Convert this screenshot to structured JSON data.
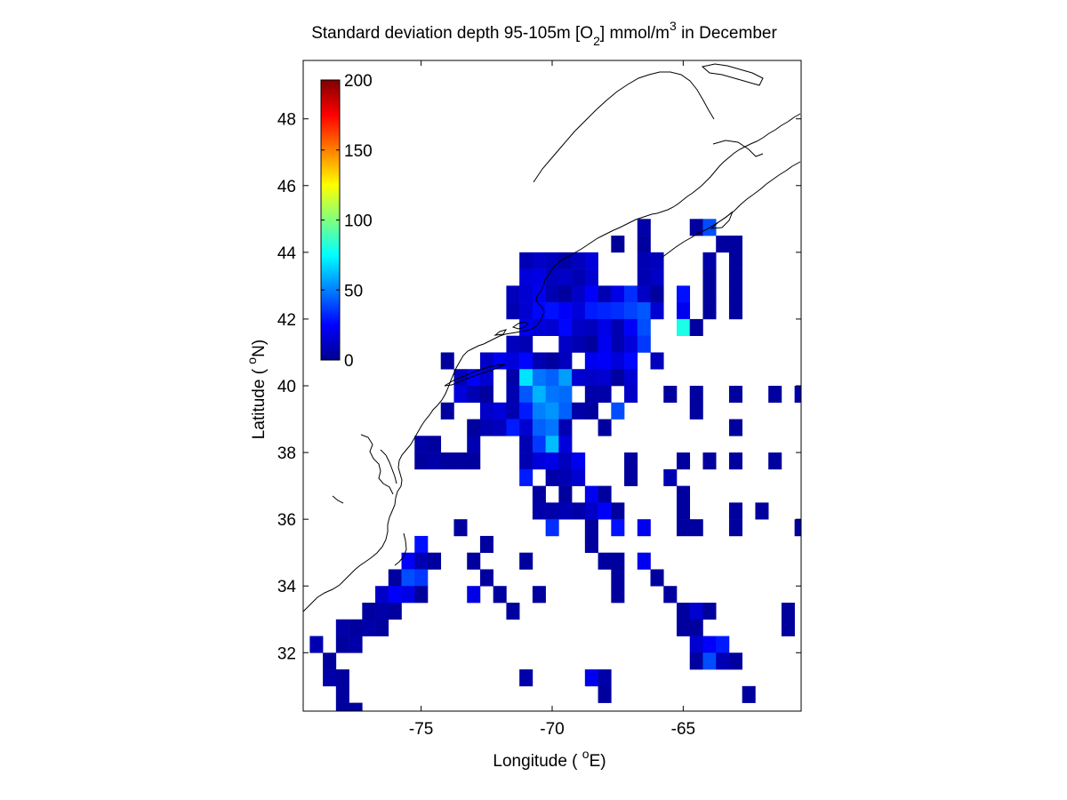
{
  "chart_data": {
    "type": "heatmap",
    "title_main": "Standard deviation depth 95-105m [O",
    "title_sub": "2",
    "title_mid": "] mmol/m",
    "title_sup": "3",
    "title_end": " in December",
    "xlabel_pre": "Longitude ( ",
    "xlabel_sup": "o",
    "xlabel_post": "E)",
    "ylabel_pre": "Latitude ( ",
    "ylabel_sup": "o",
    "ylabel_post": "N)",
    "xlim": [
      -79.5,
      -60.5
    ],
    "ylim": [
      30.25,
      49.75
    ],
    "xticks": [
      -75,
      -70,
      -65
    ],
    "xtick_labels": [
      "-75",
      "-70",
      "-65"
    ],
    "yticks": [
      32,
      34,
      36,
      38,
      40,
      42,
      44,
      46,
      48
    ],
    "ytick_labels": [
      "32",
      "34",
      "36",
      "38",
      "40",
      "42",
      "44",
      "46",
      "48"
    ],
    "colorbar": {
      "colormap": "jet",
      "range": [
        0,
        200
      ],
      "ticks": [
        0,
        50,
        100,
        150,
        200
      ],
      "tick_labels": [
        "0",
        "50",
        "100",
        "150",
        "200"
      ],
      "placement": "top-left inside axes"
    },
    "grid": false,
    "cell_size_deg": [
      0.5,
      0.5
    ],
    "cells": [
      [
        -66.5,
        44.75,
        8
      ],
      [
        -64.5,
        44.75,
        6
      ],
      [
        -64.0,
        44.75,
        40
      ],
      [
        -67.5,
        44.25,
        5
      ],
      [
        -66.5,
        44.25,
        6
      ],
      [
        -63.5,
        44.25,
        6
      ],
      [
        -63.0,
        44.25,
        6
      ],
      [
        -71.0,
        43.75,
        10
      ],
      [
        -70.5,
        43.75,
        14
      ],
      [
        -70.0,
        43.75,
        12
      ],
      [
        -69.5,
        43.75,
        8
      ],
      [
        -69.0,
        43.75,
        12
      ],
      [
        -68.5,
        43.75,
        18
      ],
      [
        -66.5,
        43.75,
        10
      ],
      [
        -66.0,
        43.75,
        12
      ],
      [
        -64.0,
        43.75,
        8
      ],
      [
        -63.0,
        43.75,
        6
      ],
      [
        -71.0,
        43.25,
        18
      ],
      [
        -70.5,
        43.25,
        20
      ],
      [
        -70.0,
        43.25,
        12
      ],
      [
        -69.5,
        43.25,
        14
      ],
      [
        -69.0,
        43.25,
        10
      ],
      [
        -68.5,
        43.25,
        16
      ],
      [
        -66.5,
        43.25,
        10
      ],
      [
        -66.0,
        43.25,
        14
      ],
      [
        -64.0,
        43.25,
        6
      ],
      [
        -63.0,
        43.25,
        6
      ],
      [
        -71.5,
        42.75,
        12
      ],
      [
        -71.0,
        42.75,
        16
      ],
      [
        -70.5,
        42.75,
        22
      ],
      [
        -70.0,
        42.75,
        10
      ],
      [
        -69.5,
        42.75,
        6
      ],
      [
        -69.0,
        42.75,
        14
      ],
      [
        -68.5,
        42.75,
        24
      ],
      [
        -68.0,
        42.75,
        10
      ],
      [
        -67.5,
        42.75,
        20
      ],
      [
        -67.0,
        42.75,
        34
      ],
      [
        -66.5,
        42.75,
        14
      ],
      [
        -66.0,
        42.75,
        6
      ],
      [
        -65.0,
        42.75,
        28
      ],
      [
        -64.0,
        42.75,
        6
      ],
      [
        -63.0,
        42.75,
        6
      ],
      [
        -71.5,
        42.25,
        10
      ],
      [
        -71.0,
        42.25,
        16
      ],
      [
        -70.5,
        42.25,
        26
      ],
      [
        -70.0,
        42.25,
        28
      ],
      [
        -69.5,
        42.25,
        24
      ],
      [
        -69.0,
        42.25,
        18
      ],
      [
        -68.5,
        42.25,
        30
      ],
      [
        -68.0,
        42.25,
        32
      ],
      [
        -67.5,
        42.25,
        34
      ],
      [
        -67.0,
        42.25,
        38
      ],
      [
        -66.5,
        42.25,
        42
      ],
      [
        -66.0,
        42.25,
        16
      ],
      [
        -65.0,
        42.25,
        22
      ],
      [
        -64.0,
        42.25,
        6
      ],
      [
        -63.0,
        42.25,
        6
      ],
      [
        -71.0,
        41.75,
        22
      ],
      [
        -70.5,
        41.75,
        18
      ],
      [
        -70.0,
        41.75,
        16
      ],
      [
        -69.5,
        41.75,
        26
      ],
      [
        -69.0,
        41.75,
        14
      ],
      [
        -68.5,
        41.75,
        12
      ],
      [
        -68.0,
        41.75,
        20
      ],
      [
        -67.5,
        41.75,
        10
      ],
      [
        -67.0,
        41.75,
        24
      ],
      [
        -66.5,
        41.75,
        40
      ],
      [
        -65.0,
        41.75,
        80
      ],
      [
        -64.5,
        41.75,
        6
      ],
      [
        -71.5,
        41.25,
        12
      ],
      [
        -71.0,
        41.25,
        10
      ],
      [
        -69.5,
        41.25,
        14
      ],
      [
        -69.0,
        41.25,
        10
      ],
      [
        -68.5,
        41.25,
        6
      ],
      [
        -68.0,
        41.25,
        22
      ],
      [
        -67.5,
        41.25,
        10
      ],
      [
        -67.0,
        41.25,
        18
      ],
      [
        -66.5,
        41.25,
        36
      ],
      [
        -74.0,
        40.75,
        6
      ],
      [
        -72.5,
        40.75,
        14
      ],
      [
        -72.0,
        40.75,
        22
      ],
      [
        -71.5,
        40.75,
        18
      ],
      [
        -71.0,
        40.75,
        26
      ],
      [
        -70.5,
        40.75,
        10
      ],
      [
        -70.0,
        40.75,
        6
      ],
      [
        -69.5,
        40.75,
        12
      ],
      [
        -68.5,
        40.75,
        22
      ],
      [
        -68.0,
        40.75,
        24
      ],
      [
        -67.5,
        40.75,
        18
      ],
      [
        -67.0,
        40.75,
        26
      ],
      [
        -66.0,
        40.75,
        12
      ],
      [
        -73.5,
        40.25,
        12
      ],
      [
        -73.0,
        40.25,
        24
      ],
      [
        -72.5,
        40.25,
        16
      ],
      [
        -71.5,
        40.25,
        8
      ],
      [
        -71.0,
        40.25,
        70
      ],
      [
        -70.5,
        40.25,
        48
      ],
      [
        -70.0,
        40.25,
        44
      ],
      [
        -69.5,
        40.25,
        56
      ],
      [
        -69.0,
        40.25,
        16
      ],
      [
        -68.5,
        40.25,
        14
      ],
      [
        -68.0,
        40.25,
        16
      ],
      [
        -67.5,
        40.25,
        6
      ],
      [
        -67.0,
        40.25,
        16
      ],
      [
        -73.5,
        39.75,
        18
      ],
      [
        -73.0,
        39.75,
        10
      ],
      [
        -72.5,
        39.75,
        6
      ],
      [
        -71.5,
        39.75,
        10
      ],
      [
        -71.0,
        39.75,
        42
      ],
      [
        -70.5,
        39.75,
        60
      ],
      [
        -70.0,
        39.75,
        48
      ],
      [
        -69.5,
        39.75,
        46
      ],
      [
        -68.5,
        39.75,
        8
      ],
      [
        -68.0,
        39.75,
        8
      ],
      [
        -67.0,
        39.75,
        14
      ],
      [
        -65.5,
        39.75,
        6
      ],
      [
        -64.5,
        39.75,
        6
      ],
      [
        -63.0,
        39.75,
        6
      ],
      [
        -61.5,
        39.75,
        6
      ],
      [
        -60.5,
        39.75,
        8
      ],
      [
        -74.0,
        39.25,
        6
      ],
      [
        -72.5,
        39.25,
        14
      ],
      [
        -72.0,
        39.25,
        18
      ],
      [
        -71.5,
        39.25,
        10
      ],
      [
        -71.0,
        39.25,
        30
      ],
      [
        -70.5,
        39.25,
        50
      ],
      [
        -70.0,
        39.25,
        54
      ],
      [
        -69.5,
        39.25,
        44
      ],
      [
        -69.0,
        39.25,
        8
      ],
      [
        -68.5,
        39.25,
        6
      ],
      [
        -67.5,
        39.25,
        40
      ],
      [
        -64.5,
        39.25,
        6
      ],
      [
        -73.0,
        38.75,
        6
      ],
      [
        -72.5,
        38.75,
        10
      ],
      [
        -72.0,
        38.75,
        12
      ],
      [
        -71.5,
        38.75,
        30
      ],
      [
        -71.0,
        38.75,
        16
      ],
      [
        -70.5,
        38.75,
        44
      ],
      [
        -70.0,
        38.75,
        48
      ],
      [
        -69.5,
        38.75,
        10
      ],
      [
        -68.0,
        38.75,
        6
      ],
      [
        -63.0,
        38.75,
        6
      ],
      [
        -75.0,
        38.25,
        8
      ],
      [
        -74.5,
        38.25,
        6
      ],
      [
        -73.0,
        38.25,
        10
      ],
      [
        -71.0,
        38.25,
        10
      ],
      [
        -70.5,
        38.25,
        36
      ],
      [
        -70.0,
        38.25,
        62
      ],
      [
        -69.5,
        38.25,
        18
      ],
      [
        -75.0,
        37.75,
        6
      ],
      [
        -74.5,
        37.75,
        8
      ],
      [
        -74.0,
        37.75,
        6
      ],
      [
        -73.5,
        37.75,
        6
      ],
      [
        -73.0,
        37.75,
        6
      ],
      [
        -71.0,
        37.75,
        10
      ],
      [
        -70.5,
        37.75,
        18
      ],
      [
        -70.0,
        37.75,
        20
      ],
      [
        -69.5,
        37.75,
        12
      ],
      [
        -69.0,
        37.75,
        22
      ],
      [
        -67.0,
        37.75,
        6
      ],
      [
        -65.0,
        37.75,
        6
      ],
      [
        -64.0,
        37.75,
        6
      ],
      [
        -63.0,
        37.75,
        6
      ],
      [
        -61.5,
        37.75,
        6
      ],
      [
        -71.0,
        37.25,
        30
      ],
      [
        -70.0,
        37.25,
        8
      ],
      [
        -69.5,
        37.25,
        10
      ],
      [
        -69.0,
        37.25,
        16
      ],
      [
        -67.0,
        37.25,
        6
      ],
      [
        -65.5,
        37.25,
        10
      ],
      [
        -70.5,
        36.75,
        6
      ],
      [
        -69.5,
        36.75,
        6
      ],
      [
        -68.5,
        36.75,
        22
      ],
      [
        -68.0,
        36.75,
        6
      ],
      [
        -65.0,
        36.75,
        6
      ],
      [
        -70.5,
        36.25,
        8
      ],
      [
        -70.0,
        36.25,
        8
      ],
      [
        -69.5,
        36.25,
        10
      ],
      [
        -69.0,
        36.25,
        8
      ],
      [
        -68.5,
        36.25,
        14
      ],
      [
        -68.0,
        36.25,
        24
      ],
      [
        -67.5,
        36.25,
        6
      ],
      [
        -65.0,
        36.25,
        6
      ],
      [
        -63.0,
        36.25,
        6
      ],
      [
        -62.0,
        36.25,
        6
      ],
      [
        -73.5,
        35.75,
        6
      ],
      [
        -70.0,
        35.75,
        34
      ],
      [
        -68.5,
        35.75,
        6
      ],
      [
        -67.5,
        35.75,
        28
      ],
      [
        -66.5,
        35.75,
        22
      ],
      [
        -65.0,
        35.75,
        6
      ],
      [
        -64.5,
        35.75,
        6
      ],
      [
        -63.0,
        35.75,
        6
      ],
      [
        -60.5,
        35.75,
        6
      ],
      [
        -75.0,
        35.25,
        28
      ],
      [
        -72.5,
        35.25,
        6
      ],
      [
        -68.5,
        35.25,
        6
      ],
      [
        -75.5,
        34.75,
        24
      ],
      [
        -75.0,
        34.75,
        10
      ],
      [
        -74.5,
        34.75,
        6
      ],
      [
        -73.0,
        34.75,
        6
      ],
      [
        -71.0,
        34.75,
        6
      ],
      [
        -68.0,
        34.75,
        6
      ],
      [
        -67.5,
        34.75,
        6
      ],
      [
        -66.5,
        34.75,
        22
      ],
      [
        -76.0,
        34.25,
        6
      ],
      [
        -75.5,
        34.25,
        40
      ],
      [
        -75.0,
        34.25,
        36
      ],
      [
        -72.5,
        34.25,
        6
      ],
      [
        -67.5,
        34.25,
        6
      ],
      [
        -66.0,
        34.25,
        6
      ],
      [
        -76.5,
        33.75,
        14
      ],
      [
        -76.0,
        33.75,
        24
      ],
      [
        -75.5,
        33.75,
        20
      ],
      [
        -75.0,
        33.75,
        6
      ],
      [
        -73.0,
        33.75,
        20
      ],
      [
        -72.0,
        33.75,
        6
      ],
      [
        -70.5,
        33.75,
        6
      ],
      [
        -67.5,
        33.75,
        6
      ],
      [
        -65.5,
        33.75,
        6
      ],
      [
        -77.0,
        33.25,
        6
      ],
      [
        -76.5,
        33.25,
        8
      ],
      [
        -76.0,
        33.25,
        6
      ],
      [
        -71.5,
        33.25,
        6
      ],
      [
        -65.0,
        33.25,
        6
      ],
      [
        -64.5,
        33.25,
        16
      ],
      [
        -64.0,
        33.25,
        6
      ],
      [
        -61.0,
        33.25,
        6
      ],
      [
        -78.0,
        32.75,
        8
      ],
      [
        -77.5,
        32.75,
        6
      ],
      [
        -77.0,
        32.75,
        8
      ],
      [
        -76.5,
        32.75,
        6
      ],
      [
        -65.0,
        32.75,
        6
      ],
      [
        -64.5,
        32.75,
        6
      ],
      [
        -61.0,
        32.75,
        6
      ],
      [
        -79.0,
        32.25,
        10
      ],
      [
        -78.0,
        32.25,
        6
      ],
      [
        -77.5,
        32.25,
        8
      ],
      [
        -64.5,
        32.25,
        16
      ],
      [
        -64.0,
        32.25,
        24
      ],
      [
        -63.5,
        32.25,
        30
      ],
      [
        -78.5,
        31.75,
        6
      ],
      [
        -64.5,
        31.75,
        6
      ],
      [
        -64.0,
        31.75,
        40
      ],
      [
        -63.5,
        31.75,
        10
      ],
      [
        -63.0,
        31.75,
        6
      ],
      [
        -78.5,
        31.25,
        8
      ],
      [
        -78.0,
        31.25,
        6
      ],
      [
        -71.0,
        31.25,
        8
      ],
      [
        -68.5,
        31.25,
        22
      ],
      [
        -68.0,
        31.25,
        8
      ],
      [
        -78.0,
        30.75,
        6
      ],
      [
        -68.0,
        30.75,
        6
      ],
      [
        -62.5,
        30.75,
        6
      ],
      [
        -78.0,
        30.25,
        6
      ],
      [
        -77.5,
        30.25,
        6
      ]
    ]
  }
}
